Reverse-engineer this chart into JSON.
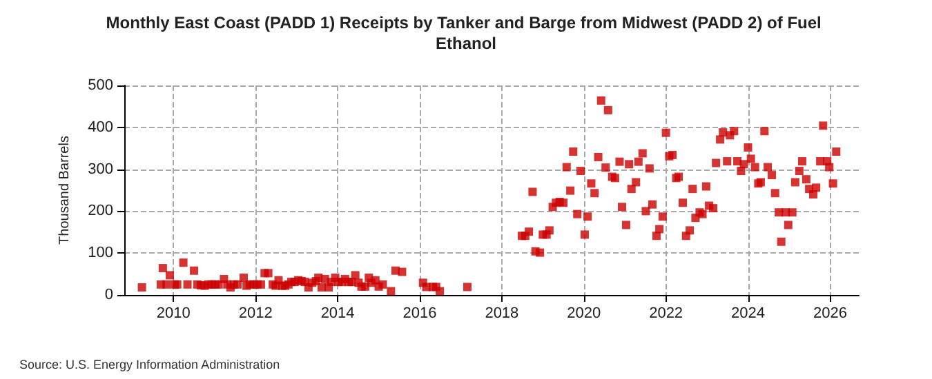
{
  "chart_data": {
    "type": "scatter",
    "title": "Monthly East Coast (PADD 1) Receipts by Tanker and Barge from Midwest (PADD 2) of Fuel Ethanol",
    "ylabel": "Thousand Barrels",
    "annotations": [
      "Source: U.S. Energy Information Administration"
    ],
    "x": [
      2009.23,
      2009.69,
      2009.74,
      2009.83,
      2009.91,
      2010.03,
      2010.09,
      2010.24,
      2010.34,
      2010.5,
      2010.58,
      2010.67,
      2010.76,
      2010.85,
      2010.93,
      2011.02,
      2011.1,
      2011.23,
      2011.31,
      2011.39,
      2011.47,
      2011.56,
      2011.71,
      2011.78,
      2011.86,
      2011.95,
      2012.04,
      2012.13,
      2012.22,
      2012.31,
      2012.42,
      2012.49,
      2012.56,
      2012.65,
      2012.72,
      2012.8,
      2012.87,
      2012.95,
      2013.04,
      2013.12,
      2013.2,
      2013.29,
      2013.38,
      2013.47,
      2013.53,
      2013.61,
      2013.69,
      2013.78,
      2013.84,
      2013.94,
      2014.02,
      2014.1,
      2014.18,
      2014.27,
      2014.34,
      2014.43,
      2014.51,
      2014.58,
      2014.67,
      2014.76,
      2014.82,
      2014.92,
      2015.0,
      2015.1,
      2015.3,
      2015.41,
      2015.57,
      2016.08,
      2016.16,
      2016.32,
      2016.4,
      2016.49,
      2017.16,
      2018.49,
      2018.57,
      2018.66,
      2018.75,
      2018.82,
      2018.93,
      2019.0,
      2019.09,
      2019.16,
      2019.24,
      2019.32,
      2019.41,
      2019.5,
      2019.58,
      2019.67,
      2019.74,
      2019.84,
      2019.92,
      2020.02,
      2020.09,
      2020.18,
      2020.26,
      2020.35,
      2020.42,
      2020.53,
      2020.59,
      2020.69,
      2020.76,
      2020.87,
      2020.93,
      2021.03,
      2021.1,
      2021.16,
      2021.27,
      2021.33,
      2021.43,
      2021.51,
      2021.6,
      2021.67,
      2021.77,
      2021.84,
      2021.92,
      2022.0,
      2022.08,
      2022.16,
      2022.25,
      2022.31,
      2022.41,
      2022.49,
      2022.58,
      2022.65,
      2022.72,
      2022.82,
      2022.89,
      2022.98,
      2023.05,
      2023.15,
      2023.22,
      2023.32,
      2023.39,
      2023.49,
      2023.56,
      2023.66,
      2023.74,
      2023.83,
      2023.9,
      2024.0,
      2024.07,
      2024.17,
      2024.25,
      2024.31,
      2024.4,
      2024.48,
      2024.58,
      2024.66,
      2024.75,
      2024.81,
      2024.92,
      2024.98,
      2025.08,
      2025.15,
      2025.25,
      2025.32,
      2025.42,
      2025.49,
      2025.59,
      2025.66,
      2025.76,
      2025.83,
      2025.93,
      2025.98,
      2026.07,
      2026.15
    ],
    "values": [
      18,
      25,
      64,
      25,
      47,
      25,
      25,
      77,
      25,
      58,
      25,
      23,
      22,
      25,
      25,
      25,
      25,
      38,
      25,
      18,
      25,
      25,
      41,
      22,
      25,
      25,
      25,
      25,
      52,
      52,
      25,
      22,
      35,
      22,
      22,
      25,
      31,
      31,
      35,
      33,
      31,
      18,
      29,
      33,
      41,
      18,
      38,
      18,
      31,
      41,
      31,
      31,
      38,
      31,
      31,
      47,
      29,
      20,
      20,
      41,
      29,
      35,
      20,
      25,
      9,
      58,
      55,
      29,
      19,
      19,
      19,
      9,
      19,
      141,
      141,
      151,
      246,
      104,
      101,
      144,
      144,
      154,
      210,
      220,
      222,
      220,
      305,
      249,
      342,
      193,
      296,
      144,
      187,
      266,
      243,
      329,
      464,
      304,
      441,
      282,
      279,
      318,
      210,
      167,
      312,
      253,
      269,
      318,
      338,
      200,
      302,
      216,
      141,
      157,
      187,
      387,
      331,
      334,
      279,
      282,
      220,
      141,
      154,
      253,
      184,
      197,
      193,
      259,
      213,
      207,
      315,
      371,
      388,
      319,
      381,
      391,
      319,
      296,
      312,
      352,
      325,
      305,
      266,
      269,
      391,
      305,
      286,
      243,
      197,
      127,
      197,
      167,
      197,
      269,
      296,
      319,
      276,
      253,
      240,
      256,
      319,
      404,
      319,
      305,
      266,
      342
    ],
    "color": "#cc0000",
    "marker": "square",
    "xlim": [
      2008.8,
      2026.7
    ],
    "xticks": [
      2010,
      2012,
      2014,
      2016,
      2018,
      2020,
      2022,
      2024,
      2026
    ],
    "ylim": [
      0,
      500
    ],
    "yticks": [
      0,
      100,
      200,
      300,
      400,
      500
    ],
    "grid": true
  }
}
